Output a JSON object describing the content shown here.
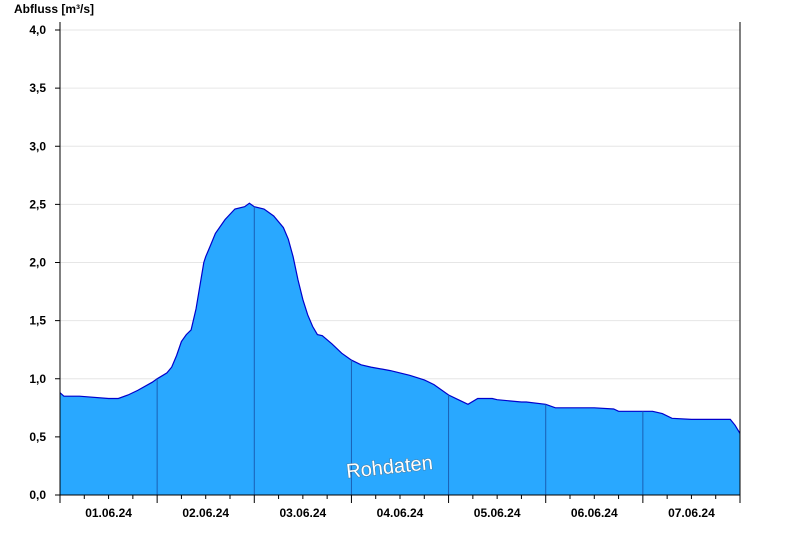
{
  "chart_data": {
    "type": "area",
    "ylabel": "Abfluss [m³/s]",
    "watermark": "Rohdaten",
    "ylim": [
      0,
      4.0
    ],
    "y_ticks": [
      "0,0",
      "0,5",
      "1,0",
      "1,5",
      "2,0",
      "2,5",
      "3,0",
      "3,5",
      "4,0"
    ],
    "x_range_days": [
      0,
      7
    ],
    "x_tick_labels": [
      "01.06.24",
      "02.06.24",
      "03.06.24",
      "04.06.24",
      "05.06.24",
      "06.06.24",
      "07.06.24"
    ],
    "grid": true,
    "colors": {
      "fill": "#29a8ff",
      "line": "#0000cc",
      "grid": "#e6e6e6"
    },
    "series": [
      {
        "x": [
          0,
          0.04,
          0.2,
          0.5,
          0.6,
          0.7,
          0.8,
          0.95,
          1.0,
          1.1,
          1.15,
          1.2,
          1.25,
          1.3,
          1.35,
          1.4,
          1.45,
          1.48,
          1.5,
          1.55,
          1.6,
          1.7,
          1.8,
          1.9,
          1.95,
          2.0,
          2.1,
          2.2,
          2.3,
          2.35,
          2.4,
          2.45,
          2.5,
          2.55,
          2.6,
          2.65,
          2.7,
          2.8,
          2.9,
          3.0,
          3.1,
          3.2,
          3.4,
          3.5,
          3.6,
          3.75,
          3.85,
          4.0,
          4.1,
          4.2,
          4.3,
          4.35,
          4.4,
          4.45,
          4.5,
          4.75,
          4.8,
          5.0,
          5.1,
          5.2,
          5.5,
          5.7,
          5.75,
          6.0,
          6.1,
          6.2,
          6.3,
          6.5,
          6.9,
          6.95,
          7.0
        ],
        "y": [
          0.88,
          0.85,
          0.85,
          0.83,
          0.83,
          0.86,
          0.9,
          0.97,
          1.0,
          1.05,
          1.1,
          1.2,
          1.32,
          1.38,
          1.42,
          1.6,
          1.85,
          2.0,
          2.05,
          2.15,
          2.25,
          2.37,
          2.46,
          2.48,
          2.51,
          2.48,
          2.46,
          2.4,
          2.3,
          2.2,
          2.05,
          1.85,
          1.68,
          1.55,
          1.45,
          1.38,
          1.37,
          1.3,
          1.22,
          1.16,
          1.12,
          1.1,
          1.07,
          1.05,
          1.03,
          0.99,
          0.95,
          0.86,
          0.82,
          0.78,
          0.83,
          0.83,
          0.83,
          0.83,
          0.82,
          0.8,
          0.8,
          0.78,
          0.75,
          0.75,
          0.75,
          0.74,
          0.72,
          0.72,
          0.72,
          0.7,
          0.66,
          0.65,
          0.65,
          0.6,
          0.53
        ]
      }
    ]
  }
}
